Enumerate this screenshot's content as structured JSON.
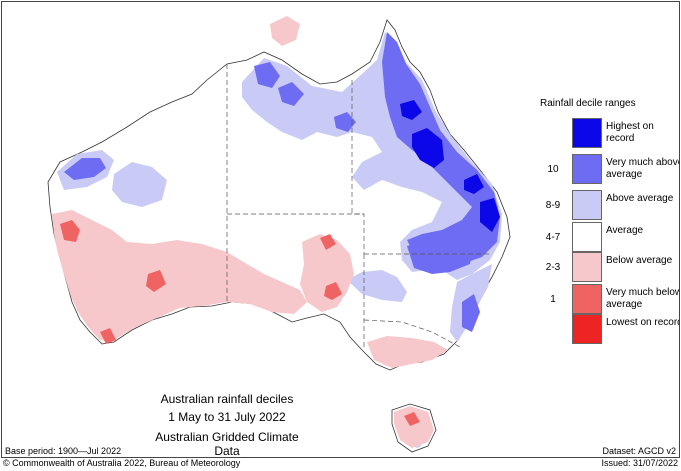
{
  "map": {
    "title_line1": "Australian rainfall deciles",
    "title_line2": "1 May to 31 July 2022",
    "title_line3": "Australian Gridded Climate Data"
  },
  "legend": {
    "title": "Rainfall decile ranges",
    "items": [
      {
        "range": "",
        "label": "Highest on record",
        "color": "#0b07e8"
      },
      {
        "range": "10",
        "label": "Very much above average",
        "color": "#6d6cf2"
      },
      {
        "range": "8-9",
        "label": "Above average",
        "color": "#c9cbf6"
      },
      {
        "range": "4-7",
        "label": "Average",
        "color": "#ffffff"
      },
      {
        "range": "2-3",
        "label": "Below average",
        "color": "#f7c8cb"
      },
      {
        "range": "1",
        "label": "Very much below average",
        "color": "#ef6363"
      },
      {
        "range": "",
        "label": "Lowest on record",
        "color": "#ee2424"
      }
    ]
  },
  "footer": {
    "base_period": "Base period: 1900—Jul 2022",
    "dataset": "Dataset: AGCD v2",
    "copyright": "© Commonwealth of Australia 2022, Bureau of Meteorology",
    "issued": "Issued: 31/07/2022"
  }
}
